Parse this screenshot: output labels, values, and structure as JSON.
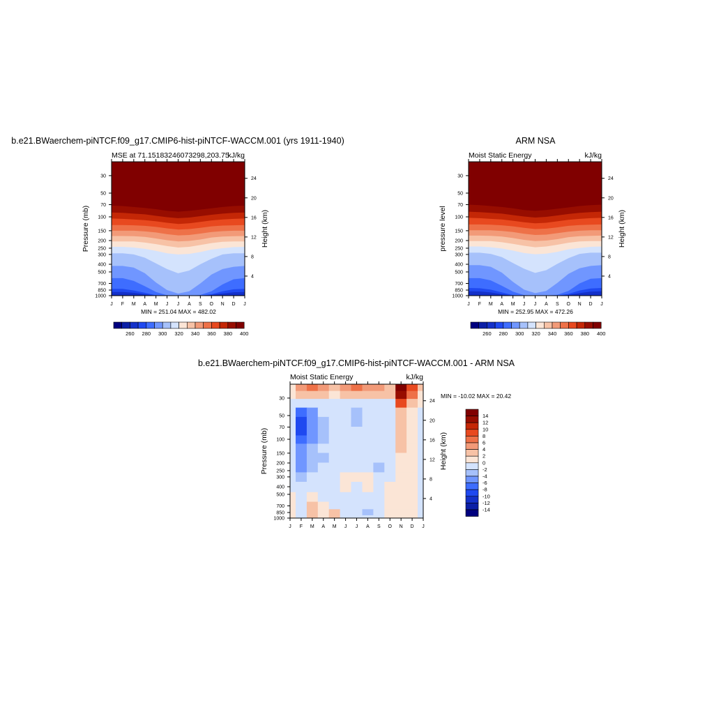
{
  "colors": {
    "mse_palette": [
      "#00007f",
      "#0b1fa6",
      "#1431c9",
      "#1f49f0",
      "#3e6dff",
      "#7096ff",
      "#a6c1fb",
      "#d4e3fd",
      "#fbe5d6",
      "#f7c2a6",
      "#f29a78",
      "#ee7148",
      "#e8491f",
      "#c42706",
      "#970d00",
      "#800000"
    ],
    "diff_palette": [
      "#00007f",
      "#0b1fa6",
      "#1431c9",
      "#1f49f0",
      "#3e6dff",
      "#7096ff",
      "#a6c1fb",
      "#d4e3fd",
      "#fbe5d6",
      "#f7c2a6",
      "#f29a78",
      "#ee7148",
      "#e8491f",
      "#c42706",
      "#970d00",
      "#800000"
    ]
  },
  "panel1": {
    "title": "b.e21.BWaerchem-piNTCF.f09_g17.CMIP6-hist-piNTCF-WACCM.001 (yrs 1911-1940)",
    "left_label": "MSE at 71.15183246073298,203.75",
    "right_label": "kJ/kg",
    "ylabel": "Pressure (mb)",
    "y2label": "Height (km)",
    "stats": "MIN = 251.04 MAX = 482.02",
    "colorbar_labels": [
      "260",
      "280",
      "300",
      "320",
      "340",
      "360",
      "380",
      "400"
    ]
  },
  "panel2": {
    "title": "ARM NSA",
    "left_label": "Moist Static Energy",
    "right_label": "kJ/kg",
    "ylabel": "pressure level",
    "y2label": "Height (km)",
    "stats": "MIN = 252.95 MAX = 472.26",
    "colorbar_labels": [
      "260",
      "280",
      "300",
      "320",
      "340",
      "360",
      "380",
      "400"
    ]
  },
  "panel3": {
    "title": "b.e21.BWaerchem-piNTCF.f09_g17.CMIP6-hist-piNTCF-WACCM.001 - ARM NSA",
    "left_label": "Moist Static Energy",
    "right_label": "kJ/kg",
    "ylabel": "Pressure (mb)",
    "y2label": "Height (km)",
    "stats": "MIN = -10.02 MAX =  20.42",
    "colorbar_labels": [
      "14",
      "12",
      "10",
      "8",
      "6",
      "4",
      "2",
      "0",
      "-2",
      "-4",
      "-6",
      "-8",
      "-10",
      "-12",
      "-14"
    ]
  },
  "axes": {
    "pressure_ticks": [
      "30",
      "50",
      "70",
      "100",
      "150",
      "200",
      "250",
      "300",
      "400",
      "500",
      "700",
      "850",
      "1000"
    ],
    "height_ticks": [
      "24",
      "20",
      "16",
      "12",
      "8",
      "4"
    ],
    "month_ticks": [
      "J",
      "F",
      "M",
      "A",
      "M",
      "J",
      "J",
      "A",
      "S",
      "O",
      "N",
      "D",
      "J"
    ]
  },
  "chart_data": [
    {
      "type": "heatmap",
      "title": "b.e21.BWaerchem-piNTCF.f09_g17.CMIP6-hist-piNTCF-WACCM.001 (yrs 1911-1940)",
      "subtitle": "MSE at 71.15183246073298,203.75",
      "units": "kJ/kg",
      "xlabel": "",
      "ylabel": "Pressure (mb)",
      "y2label": "Height (km)",
      "x": [
        "J",
        "F",
        "M",
        "A",
        "M",
        "J",
        "J",
        "A",
        "S",
        "O",
        "N",
        "D",
        "J"
      ],
      "y_scale": "log",
      "ylim": [
        1000,
        20
      ],
      "levels": [
        260,
        270,
        280,
        290,
        300,
        310,
        320,
        330,
        340,
        350,
        360,
        370,
        380,
        390,
        400
      ],
      "min": 251.04,
      "max": 482.02,
      "contour_pressure_by_level": [
        [
          1000,
          1000,
          1000,
          1000,
          1000,
          1000,
          1000,
          1000,
          1000,
          1000,
          1000,
          1000,
          1000
        ],
        [
          980,
          985,
          990,
          1000,
          1000,
          1000,
          1000,
          1000,
          1000,
          1000,
          990,
          985,
          980
        ],
        [
          900,
          900,
          920,
          960,
          1000,
          1000,
          1000,
          1000,
          1000,
          980,
          940,
          905,
          900
        ],
        [
          820,
          820,
          860,
          920,
          990,
          1000,
          1000,
          1000,
          1000,
          960,
          880,
          830,
          820
        ],
        [
          600,
          600,
          650,
          760,
          900,
          990,
          1000,
          1000,
          980,
          880,
          720,
          620,
          600
        ],
        [
          420,
          420,
          440,
          520,
          680,
          850,
          940,
          880,
          700,
          540,
          460,
          430,
          420
        ],
        [
          290,
          290,
          300,
          330,
          390,
          460,
          520,
          480,
          400,
          340,
          300,
          290,
          290
        ],
        [
          240,
          240,
          245,
          255,
          270,
          290,
          300,
          295,
          280,
          260,
          250,
          242,
          240
        ],
        [
          205,
          205,
          205,
          212,
          222,
          235,
          245,
          240,
          228,
          215,
          207,
          205,
          205
        ],
        [
          175,
          175,
          176,
          180,
          188,
          198,
          205,
          202,
          194,
          183,
          178,
          176,
          175
        ],
        [
          150,
          150,
          150,
          153,
          158,
          166,
          172,
          170,
          163,
          156,
          152,
          150,
          150
        ],
        [
          127,
          127,
          128,
          130,
          134,
          140,
          145,
          143,
          138,
          132,
          129,
          128,
          127
        ],
        [
          105,
          106,
          108,
          110,
          114,
          119,
          123,
          121,
          116,
          111,
          108,
          106,
          105
        ],
        [
          88,
          89,
          91,
          93,
          97,
          101,
          104,
          102,
          98,
          94,
          91,
          89,
          88
        ],
        [
          72,
          73,
          75,
          77,
          80,
          84,
          86,
          84,
          81,
          78,
          75,
          73,
          72
        ]
      ]
    },
    {
      "type": "heatmap",
      "title": "ARM NSA",
      "subtitle": "Moist Static Energy",
      "units": "kJ/kg",
      "xlabel": "",
      "ylabel": "pressure level",
      "y2label": "Height (km)",
      "x": [
        "J",
        "F",
        "M",
        "A",
        "M",
        "J",
        "J",
        "A",
        "S",
        "O",
        "N",
        "D",
        "J"
      ],
      "y_scale": "log",
      "ylim": [
        1000,
        20
      ],
      "levels": [
        260,
        270,
        280,
        290,
        300,
        310,
        320,
        330,
        340,
        350,
        360,
        370,
        380,
        390,
        400
      ],
      "min": 252.95,
      "max": 472.26,
      "contour_pressure_by_level": [
        [
          1000,
          1000,
          1000,
          1000,
          1000,
          1000,
          1000,
          1000,
          1000,
          1000,
          1000,
          1000,
          1000
        ],
        [
          990,
          990,
          995,
          1000,
          1000,
          1000,
          1000,
          1000,
          1000,
          1000,
          995,
          990,
          990
        ],
        [
          880,
          885,
          910,
          960,
          1000,
          1000,
          1000,
          1000,
          1000,
          980,
          930,
          890,
          880
        ],
        [
          800,
          805,
          840,
          910,
          985,
          1000,
          1000,
          1000,
          1000,
          950,
          860,
          810,
          800
        ],
        [
          600,
          600,
          640,
          750,
          890,
          985,
          1000,
          1000,
          975,
          870,
          700,
          610,
          600
        ],
        [
          410,
          410,
          430,
          510,
          670,
          840,
          930,
          870,
          690,
          530,
          450,
          420,
          410
        ],
        [
          285,
          285,
          295,
          325,
          385,
          455,
          515,
          475,
          395,
          335,
          295,
          285,
          285
        ],
        [
          238,
          238,
          243,
          252,
          268,
          288,
          298,
          293,
          278,
          258,
          248,
          240,
          238
        ],
        [
          203,
          203,
          203,
          210,
          220,
          233,
          243,
          238,
          226,
          213,
          205,
          203,
          203
        ],
        [
          173,
          173,
          174,
          178,
          186,
          196,
          203,
          200,
          192,
          181,
          176,
          174,
          173
        ],
        [
          148,
          148,
          148,
          151,
          156,
          164,
          170,
          168,
          161,
          154,
          150,
          148,
          148
        ],
        [
          125,
          125,
          126,
          128,
          132,
          138,
          143,
          141,
          136,
          130,
          127,
          126,
          125
        ],
        [
          103,
          104,
          106,
          108,
          112,
          117,
          121,
          119,
          114,
          109,
          106,
          104,
          103
        ],
        [
          86,
          87,
          89,
          91,
          95,
          99,
          102,
          100,
          96,
          92,
          89,
          87,
          86
        ],
        [
          70,
          71,
          73,
          75,
          78,
          82,
          84,
          82,
          79,
          76,
          73,
          71,
          70
        ]
      ]
    },
    {
      "type": "heatmap",
      "title": "b.e21.BWaerchem-piNTCF.f09_g17.CMIP6-hist-piNTCF-WACCM.001 - ARM NSA",
      "subtitle": "Moist Static Energy",
      "units": "kJ/kg",
      "xlabel": "",
      "ylabel": "Pressure (mb)",
      "y2label": "Height (km)",
      "x": [
        "J",
        "F",
        "M",
        "A",
        "M",
        "J",
        "J",
        "A",
        "S",
        "O",
        "N",
        "D",
        "J"
      ],
      "y_scale": "log",
      "ylim": [
        1000,
        20
      ],
      "levels": [
        -14,
        -12,
        -10,
        -8,
        -6,
        -4,
        -2,
        0,
        2,
        4,
        6,
        8,
        10,
        12,
        14
      ],
      "min": -10.02,
      "max": 20.42,
      "y_rows": [
        22,
        27,
        35,
        45,
        60,
        80,
        100,
        130,
        170,
        230,
        300,
        400,
        550,
        700,
        850,
        1000
      ],
      "values": [
        [
          1,
          5,
          6,
          4,
          3,
          5,
          6,
          4,
          5,
          3,
          16,
          9,
          2
        ],
        [
          0,
          3,
          3,
          2,
          1,
          2,
          3,
          2,
          3,
          2,
          13,
          6,
          1
        ],
        [
          -1,
          -2,
          -1,
          -1,
          -1,
          -1,
          -1,
          -1,
          -1,
          -1,
          8,
          3,
          0
        ],
        [
          -2,
          -8,
          -5,
          -2,
          -1,
          -2,
          -4,
          -2,
          -1,
          -1,
          3,
          1,
          -1
        ],
        [
          -2,
          -10,
          -6,
          -3,
          -1,
          -2,
          -3,
          -2,
          -1,
          -1,
          2,
          1,
          -1
        ],
        [
          -2,
          -9,
          -6,
          -3,
          -2,
          -1,
          -1,
          -1,
          -1,
          -1,
          3,
          1,
          -1
        ],
        [
          -2,
          -8,
          -5,
          -3,
          -1,
          -1,
          -1,
          -1,
          -1,
          -1,
          3,
          1,
          -1
        ],
        [
          -2,
          -6,
          -4,
          -2,
          -1,
          -1,
          -1,
          -1,
          -1,
          -1,
          2,
          1,
          -1
        ],
        [
          -2,
          -5,
          -4,
          -3,
          -2,
          -1,
          -1,
          -1,
          -2,
          -1,
          1,
          0,
          -1
        ],
        [
          -1,
          -5,
          -3,
          -2,
          -1,
          -1,
          -1,
          -1,
          -3,
          -1,
          1,
          0,
          -1
        ],
        [
          -1,
          -3,
          -2,
          -1,
          -1,
          1,
          1,
          0,
          -1,
          -1,
          1,
          1,
          -1
        ],
        [
          -1,
          -1,
          -1,
          -1,
          -1,
          1,
          -1,
          1,
          -1,
          1,
          1,
          1,
          -1
        ],
        [
          1,
          -1,
          1,
          -1,
          -1,
          -1,
          -1,
          -1,
          -1,
          1,
          1,
          1,
          -1
        ],
        [
          1,
          -1,
          2,
          1,
          -1,
          -1,
          -1,
          -2,
          -2,
          1,
          1,
          1,
          -1
        ],
        [
          1,
          -1,
          2,
          1,
          2,
          -1,
          -1,
          -3,
          -2,
          1,
          1,
          1,
          -1
        ],
        [
          1,
          -1,
          2,
          1,
          2,
          -1,
          -1,
          -2,
          -2,
          1,
          1,
          1,
          -1
        ]
      ]
    }
  ]
}
